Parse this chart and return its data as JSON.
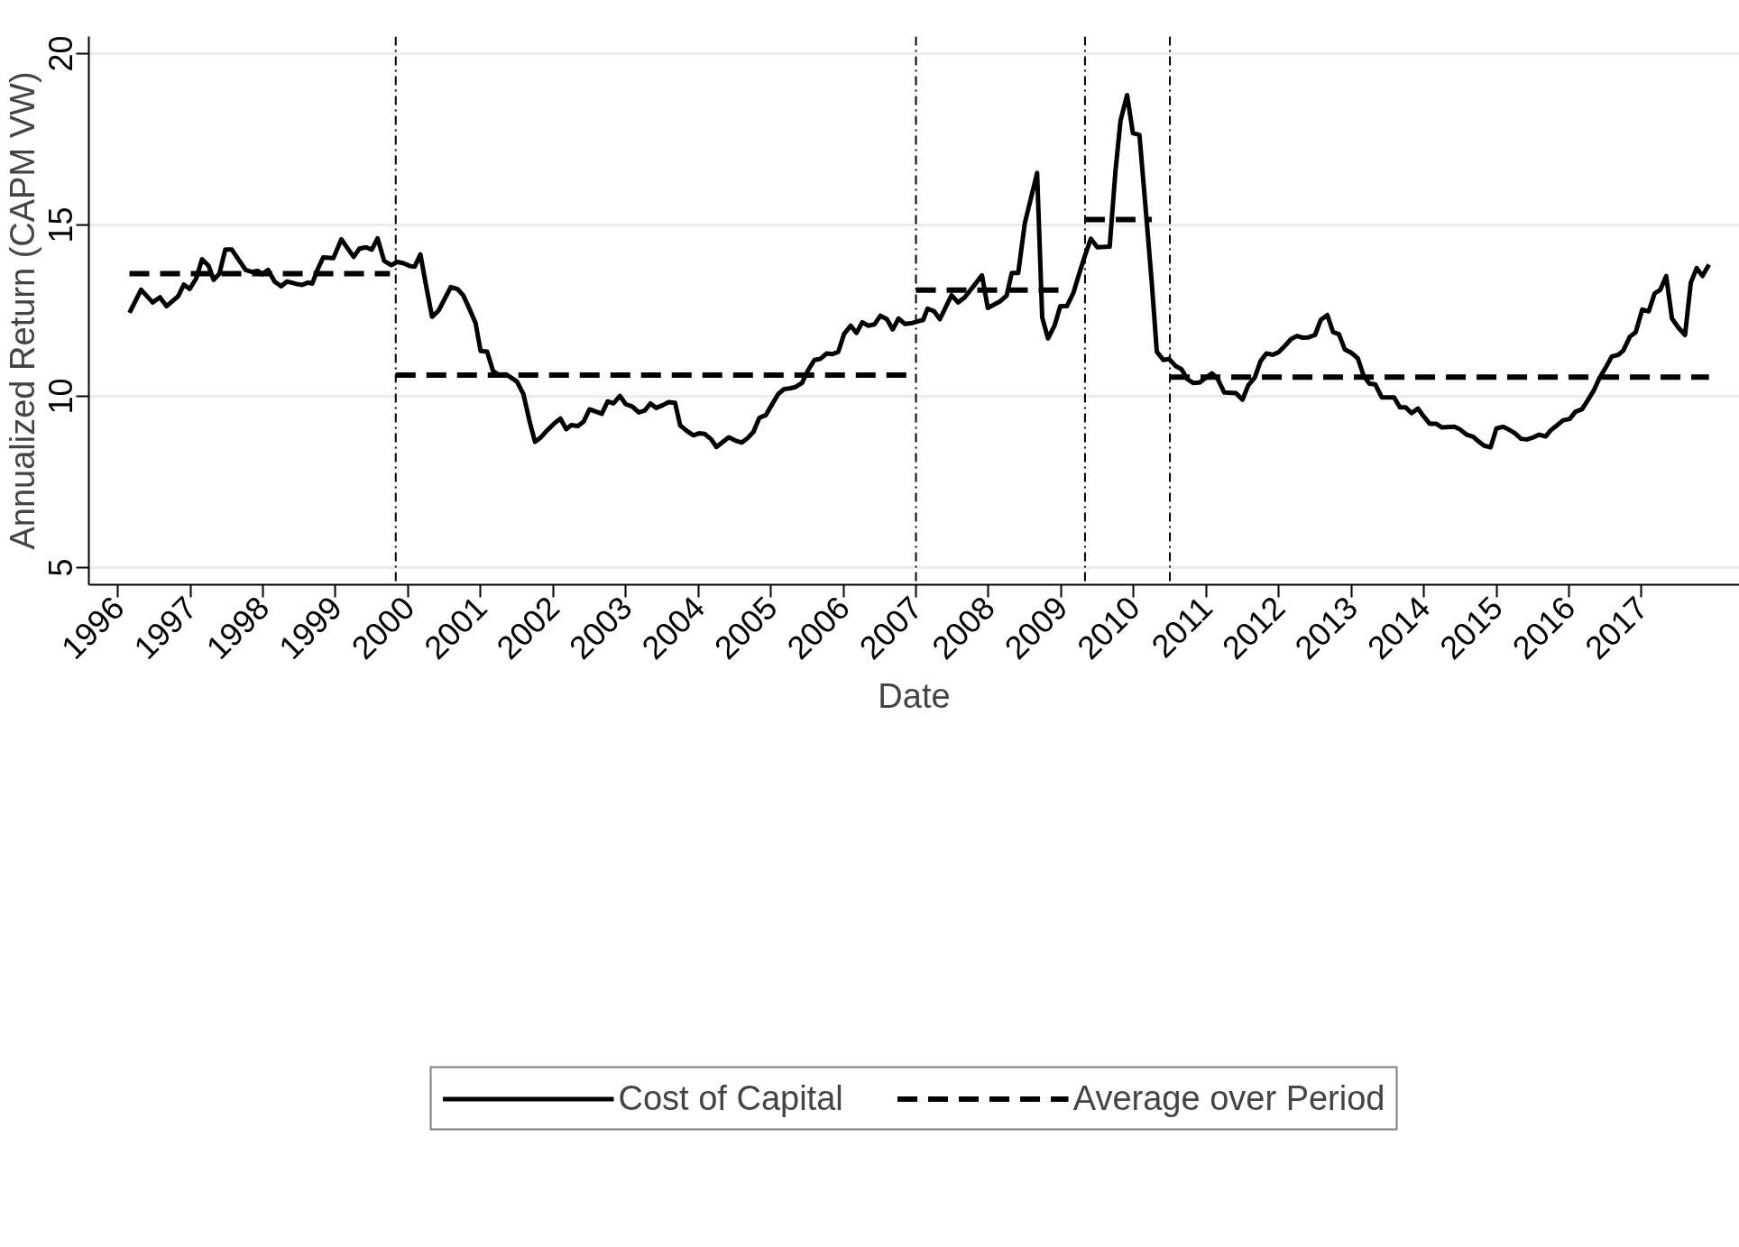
{
  "chart_data": {
    "type": "line",
    "xlabel": "Date",
    "ylabel": "Annualized Return (CAPM VW)",
    "xlim": [
      1995.6,
      2018.35
    ],
    "ylim": [
      4.5,
      20.5
    ],
    "xticks": [
      1996,
      1997,
      1998,
      1999,
      2000,
      2001,
      2002,
      2003,
      2004,
      2005,
      2006,
      2007,
      2008,
      2009,
      2010,
      2011,
      2012,
      2013,
      2014,
      2015,
      2016,
      2017
    ],
    "yticks": [
      5,
      10,
      15,
      20
    ],
    "grid": "y",
    "legend": "bottom",
    "ref_lines": [
      {
        "axis": "x",
        "value": 1999.83,
        "color": "#000000",
        "line_style": "dashdot"
      },
      {
        "axis": "x",
        "value": 2007.0,
        "color": "#000000",
        "line_style": "dashdot"
      },
      {
        "axis": "x",
        "value": 2009.33,
        "color": "#000000",
        "line_style": "dashdot"
      },
      {
        "axis": "x",
        "value": 2010.5,
        "color": "#000000",
        "line_style": "dashdot"
      }
    ],
    "series": [
      {
        "name": "Cost of Capital",
        "color": "#000000",
        "line_style": "solid",
        "x": [
          1996.16,
          1996.32,
          1996.48,
          1996.58,
          1996.67,
          1996.83,
          1996.91,
          1996.99,
          1997.08,
          1997.16,
          1997.25,
          1997.32,
          1997.4,
          1997.48,
          1997.57,
          1997.67,
          1997.76,
          1997.85,
          1997.93,
          1997.99,
          1998.07,
          1998.16,
          1998.25,
          1998.33,
          1998.46,
          1998.54,
          1998.62,
          1998.68,
          1998.75,
          1998.83,
          1998.97,
          1999.08,
          1999.25,
          1999.33,
          1999.42,
          1999.5,
          1999.58,
          1999.67,
          1999.77,
          1999.85,
          1999.93,
          2000.03,
          2000.09,
          2000.17,
          2000.25,
          2000.33,
          2000.42,
          2000.59,
          2000.68,
          2000.76,
          2000.85,
          2000.93,
          2001.0,
          2001.09,
          2001.17,
          2001.25,
          2001.35,
          2001.5,
          2001.59,
          2001.68,
          2001.75,
          2001.82,
          2001.91,
          2002.01,
          2002.1,
          2002.18,
          2002.25,
          2002.34,
          2002.42,
          2002.5,
          2002.67,
          2002.75,
          2002.83,
          2002.92,
          2003.0,
          2003.09,
          2003.18,
          2003.26,
          2003.34,
          2003.42,
          2003.51,
          2003.59,
          2003.68,
          2003.75,
          2003.83,
          2003.93,
          2004.01,
          2004.09,
          2004.18,
          2004.25,
          2004.34,
          2004.42,
          2004.51,
          2004.6,
          2004.68,
          2004.76,
          2004.84,
          2004.93,
          2005.01,
          2005.1,
          2005.18,
          2005.26,
          2005.34,
          2005.43,
          2005.51,
          2005.6,
          2005.68,
          2005.77,
          2005.85,
          2005.93,
          2006.01,
          2006.1,
          2006.18,
          2006.26,
          2006.34,
          2006.43,
          2006.51,
          2006.6,
          2006.68,
          2006.76,
          2006.85,
          2006.93,
          2007.1,
          2007.16,
          2007.25,
          2007.33,
          2007.49,
          2007.58,
          2007.67,
          2007.91,
          2007.99,
          2008.16,
          2008.25,
          2008.32,
          2008.41,
          2008.5,
          2008.67,
          2008.74,
          2008.82,
          2008.91,
          2008.99,
          2009.08,
          2009.17,
          2009.25,
          2009.33,
          2009.41,
          2009.5,
          2009.67,
          2009.75,
          2009.82,
          2009.91,
          2009.99,
          2010.08,
          2010.16,
          2010.25,
          2010.32,
          2010.41,
          2010.49,
          2010.58,
          2010.66,
          2010.74,
          2010.82,
          2010.91,
          2010.99,
          2011.08,
          2011.16,
          2011.25,
          2011.41,
          2011.5,
          2011.58,
          2011.67,
          2011.75,
          2011.83,
          2011.92,
          2012.0,
          2012.08,
          2012.17,
          2012.25,
          2012.33,
          2012.41,
          2012.5,
          2012.58,
          2012.67,
          2012.75,
          2012.83,
          2012.91,
          2013.0,
          2013.09,
          2013.17,
          2013.25,
          2013.33,
          2013.42,
          2013.59,
          2013.67,
          2013.75,
          2013.83,
          2013.92,
          2014.0,
          2014.08,
          2014.17,
          2014.25,
          2014.42,
          2014.5,
          2014.59,
          2014.68,
          2014.75,
          2014.83,
          2014.92,
          2015.0,
          2015.09,
          2015.17,
          2015.25,
          2015.34,
          2015.42,
          2015.51,
          2015.59,
          2015.68,
          2015.75,
          2015.84,
          2015.92,
          2016.01,
          2016.09,
          2016.18,
          2016.25,
          2016.34,
          2016.42,
          2016.51,
          2016.59,
          2016.68,
          2016.75,
          2016.84,
          2016.92,
          2017.01,
          2017.1,
          2017.18,
          2017.26,
          2017.34,
          2017.42,
          2017.51,
          2017.6,
          2017.68,
          2017.76,
          2017.84,
          2017.93
        ],
        "values": [
          12.44,
          13.11,
          12.74,
          12.89,
          12.63,
          12.92,
          13.26,
          13.13,
          13.44,
          14.0,
          13.81,
          13.4,
          13.58,
          14.28,
          14.28,
          13.97,
          13.69,
          13.63,
          13.66,
          13.56,
          13.69,
          13.35,
          13.21,
          13.35,
          13.28,
          13.25,
          13.32,
          13.29,
          13.69,
          14.05,
          14.03,
          14.58,
          14.07,
          14.31,
          14.35,
          14.28,
          14.61,
          13.95,
          13.83,
          13.92,
          13.89,
          13.8,
          13.78,
          14.14,
          13.21,
          12.32,
          12.5,
          13.19,
          13.13,
          12.95,
          12.53,
          12.14,
          11.32,
          11.3,
          10.74,
          10.63,
          10.64,
          10.43,
          10.06,
          9.22,
          8.67,
          8.78,
          8.99,
          9.2,
          9.35,
          9.04,
          9.16,
          9.13,
          9.26,
          9.62,
          9.49,
          9.85,
          9.79,
          10.01,
          9.77,
          9.7,
          9.53,
          9.58,
          9.79,
          9.66,
          9.74,
          9.83,
          9.81,
          9.15,
          9.01,
          8.86,
          8.92,
          8.9,
          8.74,
          8.52,
          8.67,
          8.8,
          8.71,
          8.65,
          8.78,
          8.96,
          9.37,
          9.45,
          9.74,
          10.06,
          10.21,
          10.23,
          10.27,
          10.39,
          10.75,
          11.06,
          11.09,
          11.25,
          11.23,
          11.3,
          11.82,
          12.06,
          11.85,
          12.16,
          12.06,
          12.1,
          12.35,
          12.25,
          11.95,
          12.27,
          12.11,
          12.13,
          12.23,
          12.56,
          12.48,
          12.25,
          12.95,
          12.74,
          12.88,
          13.53,
          12.58,
          12.77,
          12.94,
          13.6,
          13.6,
          15.05,
          16.52,
          12.3,
          11.69,
          12.06,
          12.63,
          12.63,
          13.02,
          13.58,
          14.11,
          14.6,
          14.35,
          14.37,
          16.58,
          18.05,
          18.79,
          17.68,
          17.63,
          15.63,
          13.32,
          11.3,
          11.06,
          11.09,
          10.88,
          10.79,
          10.5,
          10.39,
          10.4,
          10.53,
          10.67,
          10.5,
          10.11,
          10.09,
          9.9,
          10.32,
          10.55,
          11.03,
          11.25,
          11.21,
          11.29,
          11.46,
          11.67,
          11.76,
          11.71,
          11.72,
          11.79,
          12.23,
          12.37,
          11.87,
          11.81,
          11.37,
          11.27,
          11.11,
          10.6,
          10.37,
          10.35,
          9.97,
          9.97,
          9.68,
          9.68,
          9.51,
          9.64,
          9.41,
          9.2,
          9.2,
          9.09,
          9.11,
          9.03,
          8.88,
          8.82,
          8.69,
          8.56,
          8.51,
          9.06,
          9.11,
          9.03,
          8.93,
          8.76,
          8.74,
          8.8,
          8.88,
          8.83,
          9.01,
          9.16,
          9.3,
          9.34,
          9.55,
          9.62,
          9.85,
          10.16,
          10.53,
          10.85,
          11.16,
          11.21,
          11.34,
          11.74,
          11.87,
          12.53,
          12.48,
          13.0,
          13.11,
          13.51,
          12.27,
          12.0,
          11.79,
          13.32,
          13.74,
          13.51,
          13.84
        ]
      },
      {
        "name": "Average over Period",
        "color": "#000000",
        "line_style": "dashed",
        "x": [
          1996.16,
          1999.75,
          1999.79,
          1999.83,
          2006.92,
          2006.96,
          2007.0,
          2009.07,
          2009.2,
          2009.33,
          2010.25,
          2010.38,
          2010.5,
          2017.93
        ],
        "values": [
          13.58,
          13.58,
          null,
          10.62,
          10.62,
          null,
          13.1,
          13.1,
          null,
          15.16,
          15.16,
          null,
          10.56,
          10.56
        ]
      }
    ]
  }
}
